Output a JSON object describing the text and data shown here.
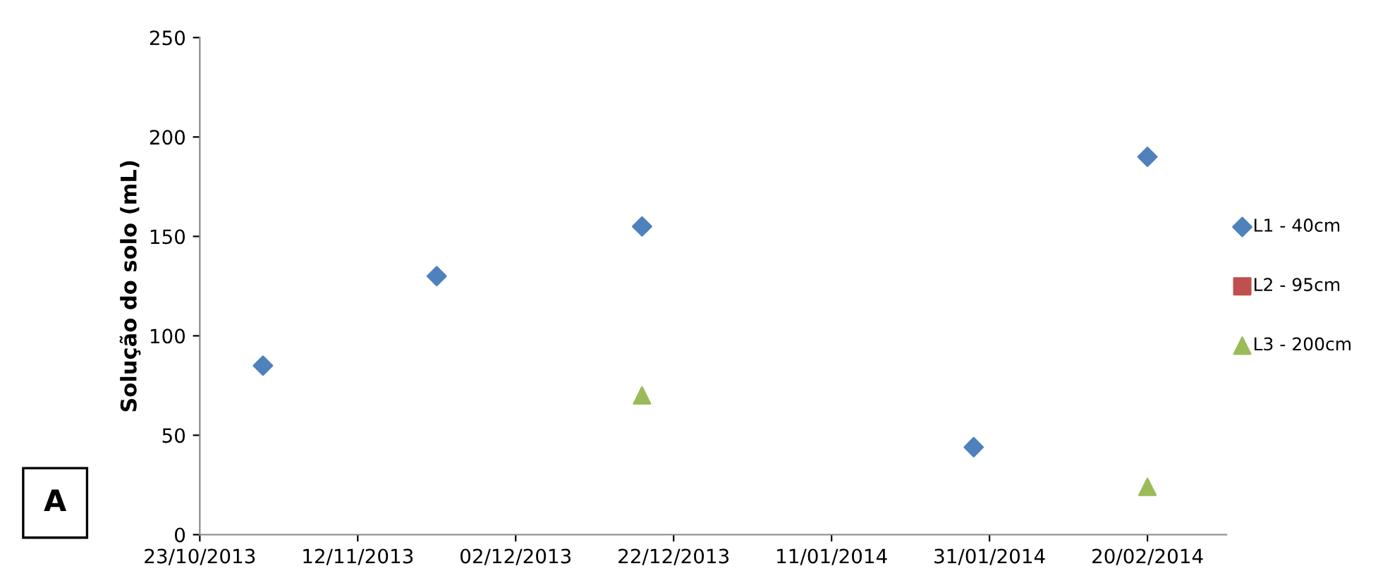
{
  "chart_data": {
    "type": "scatter",
    "ylabel": "Solução do solo (mL)",
    "annotations": [
      "A"
    ],
    "xlim": [
      "2013-10-23",
      "2014-03-02"
    ],
    "ylim": [
      0,
      250
    ],
    "yticks": [
      0,
      50,
      100,
      150,
      200,
      250
    ],
    "xticks": [
      {
        "value": "2013-10-23",
        "label": "23/10/2013"
      },
      {
        "value": "2013-11-12",
        "label": "12/11/2013"
      },
      {
        "value": "2013-12-02",
        "label": "02/12/2013"
      },
      {
        "value": "2013-12-22",
        "label": "22/12/2013"
      },
      {
        "value": "2014-01-11",
        "label": "11/01/2014"
      },
      {
        "value": "2014-01-31",
        "label": "31/01/2014"
      },
      {
        "value": "2014-02-20",
        "label": "20/02/2014"
      }
    ],
    "x": [
      "2013-10-31",
      "2013-11-22",
      "2013-12-18",
      "2014-01-29",
      "2014-02-20"
    ],
    "series": [
      {
        "name": "L1 - 40cm",
        "color": "#4f81bd",
        "marker": "diamond",
        "values": [
          85,
          130,
          155,
          44,
          190
        ]
      },
      {
        "name": "L2 - 95cm",
        "color": "#c0504d",
        "marker": "square",
        "values": [
          null,
          null,
          null,
          null,
          null
        ]
      },
      {
        "name": "L3 - 200cm",
        "color": "#9bbb59",
        "marker": "triangle",
        "values": [
          null,
          null,
          70,
          null,
          24
        ]
      }
    ],
    "legend": "right",
    "grid": false
  }
}
